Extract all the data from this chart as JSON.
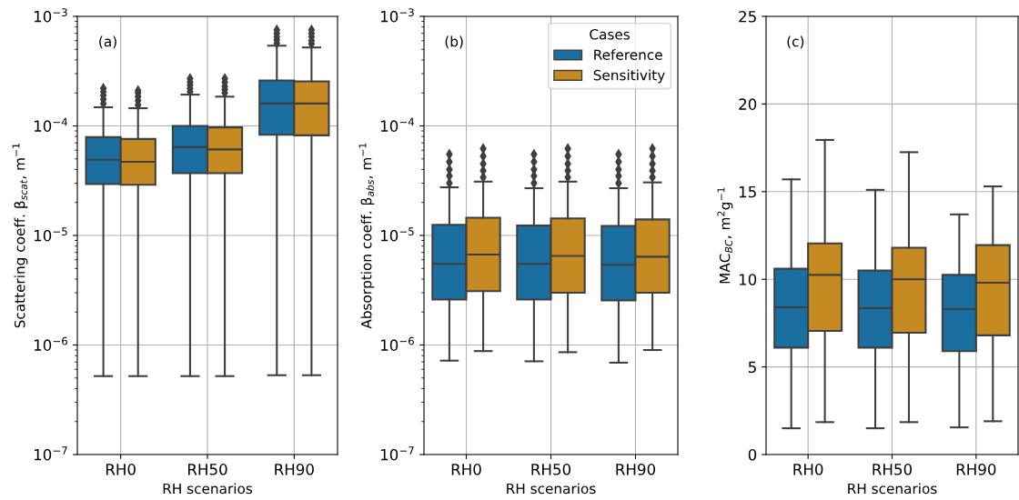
{
  "chart_data": [
    {
      "type": "box",
      "title": null,
      "annotations": [
        "(a)"
      ],
      "xlabel": "RH scenarios",
      "ylabel": "Scattering coeff. β$_{scat}$, m$^{−1}$",
      "log": true,
      "grid": true,
      "legend": false,
      "categories": [
        "RH0",
        "RH50",
        "RH90"
      ],
      "ylim": [
        1e-07,
        0.001
      ],
      "yticks": [
        {
          "value": 1e-07,
          "label": "10$^{−7}$"
        },
        {
          "value": 1e-06,
          "label": "10$^{−6}$"
        },
        {
          "value": 1e-05,
          "label": "10$^{−5}$"
        },
        {
          "value": 0.0001,
          "label": "10$^{−4}$"
        },
        {
          "value": 0.001,
          "label": "10$^{−3}$"
        }
      ],
      "series": [
        {
          "color": "#1a6fa0",
          "boxes": [
            {
              "low": 5.2e-07,
              "q1": 2.95e-05,
              "median": 4.9e-05,
              "q3": 7.9e-05,
              "high": 0.000148,
              "outliers": [
                0.00016,
                0.000175,
                0.00019,
                0.000205,
                0.00022
              ]
            },
            {
              "low": 5.2e-07,
              "q1": 3.7e-05,
              "median": 6.4e-05,
              "q3": 0.0001,
              "high": 0.000193,
              "outliers": [
                0.000205,
                0.00022,
                0.000235,
                0.00025,
                0.00027
              ]
            },
            {
              "low": 5.3e-07,
              "q1": 8.3e-05,
              "median": 0.00016,
              "q3": 0.00026,
              "high": 0.00054,
              "outliers": [
                0.00057,
                0.00061,
                0.00065,
                0.0007,
                0.00075
              ]
            }
          ]
        },
        {
          "color": "#c68a22",
          "boxes": [
            {
              "low": 5.2e-07,
              "q1": 2.9e-05,
              "median": 4.7e-05,
              "q3": 7.6e-05,
              "high": 0.000145,
              "outliers": [
                0.000155,
                0.00017,
                0.000185,
                0.0002,
                0.00021
              ]
            },
            {
              "low": 5.2e-07,
              "q1": 3.7e-05,
              "median": 6.1e-05,
              "q3": 9.7e-05,
              "high": 0.000185,
              "outliers": [
                0.0002,
                0.000215,
                0.00023,
                0.00025,
                0.00027
              ]
            },
            {
              "low": 5.3e-07,
              "q1": 8.2e-05,
              "median": 0.00016,
              "q3": 0.000255,
              "high": 0.00052,
              "outliers": [
                0.00056,
                0.0006,
                0.00065,
                0.0007,
                0.00075
              ]
            }
          ]
        }
      ]
    },
    {
      "type": "box",
      "title": null,
      "annotations": [
        "(b)"
      ],
      "xlabel": "RH scenarios",
      "ylabel": "Absorption coeff. β$_{abs}$, m$^{−1}$",
      "log": true,
      "grid": true,
      "legend": "top right",
      "legend_title": "Cases",
      "categories": [
        "RH0",
        "RH50",
        "RH90"
      ],
      "ylim": [
        1e-07,
        0.001
      ],
      "yticks": [
        {
          "value": 1e-07,
          "label": "10$^{−7}$"
        },
        {
          "value": 1e-06,
          "label": "10$^{−6}$"
        },
        {
          "value": 1e-05,
          "label": "10$^{−5}$"
        },
        {
          "value": 0.0001,
          "label": "10$^{−4}$"
        },
        {
          "value": 0.001,
          "label": "10$^{−3}$"
        }
      ],
      "series": [
        {
          "name": "Reference",
          "color": "#1a6fa0",
          "boxes": [
            {
              "low": 7.2e-07,
              "q1": 2.6e-06,
              "median": 5.5e-06,
              "q3": 1.25e-05,
              "high": 2.75e-05,
              "outliers": [
                3e-05,
                3.5e-05,
                4e-05,
                4.7e-05,
                5.5e-05
              ]
            },
            {
              "low": 7.1e-07,
              "q1": 2.6e-06,
              "median": 5.5e-06,
              "q3": 1.23e-05,
              "high": 2.7e-05,
              "outliers": [
                3e-05,
                3.5e-05,
                4e-05,
                4.7e-05,
                5.5e-05
              ]
            },
            {
              "low": 6.9e-07,
              "q1": 2.55e-06,
              "median": 5.4e-06,
              "q3": 1.22e-05,
              "high": 2.7e-05,
              "outliers": [
                3e-05,
                3.5e-05,
                4e-05,
                4.7e-05,
                5.5e-05
              ]
            }
          ]
        },
        {
          "name": "Sensitivity",
          "color": "#c68a22",
          "boxes": [
            {
              "low": 8.8e-07,
              "q1": 3.1e-06,
              "median": 6.7e-06,
              "q3": 1.45e-05,
              "high": 3.1e-05,
              "outliers": [
                3.4e-05,
                3.9e-05,
                4.5e-05,
                5.3e-05,
                6.2e-05
              ]
            },
            {
              "low": 8.6e-07,
              "q1": 3e-06,
              "median": 6.5e-06,
              "q3": 1.43e-05,
              "high": 3.1e-05,
              "outliers": [
                3.4e-05,
                3.9e-05,
                4.5e-05,
                5.3e-05,
                6.2e-05
              ]
            },
            {
              "low": 9e-07,
              "q1": 3e-06,
              "median": 6.4e-06,
              "q3": 1.4e-05,
              "high": 3.05e-05,
              "outliers": [
                3.4e-05,
                3.9e-05,
                4.5e-05,
                5.3e-05,
                6.2e-05
              ]
            }
          ]
        }
      ]
    },
    {
      "type": "box",
      "title": null,
      "annotations": [
        "(c)"
      ],
      "xlabel": "RH scenarios",
      "ylabel": "MAC$_{BC}$, m$^{2}$g$^{−1}$",
      "grid": true,
      "legend": false,
      "categories": [
        "RH0",
        "RH50",
        "RH90"
      ],
      "ylim": [
        0,
        25
      ],
      "yticks": [
        0,
        5,
        10,
        15,
        20,
        25
      ],
      "series": [
        {
          "color": "#1a6fa0",
          "boxes": [
            {
              "low": 1.5,
              "q1": 6.1,
              "median": 8.4,
              "q3": 10.6,
              "high": 15.7
            },
            {
              "low": 1.5,
              "q1": 6.1,
              "median": 8.35,
              "q3": 10.5,
              "high": 15.1
            },
            {
              "low": 1.55,
              "q1": 5.9,
              "median": 8.3,
              "q3": 10.25,
              "high": 13.7
            }
          ]
        },
        {
          "color": "#c68a22",
          "boxes": [
            {
              "low": 1.85,
              "q1": 7.05,
              "median": 10.25,
              "q3": 12.05,
              "high": 17.95
            },
            {
              "low": 1.85,
              "q1": 6.95,
              "median": 10.0,
              "q3": 11.8,
              "high": 17.25
            },
            {
              "low": 1.9,
              "q1": 6.8,
              "median": 9.8,
              "q3": 11.95,
              "high": 15.3
            }
          ]
        }
      ]
    }
  ]
}
